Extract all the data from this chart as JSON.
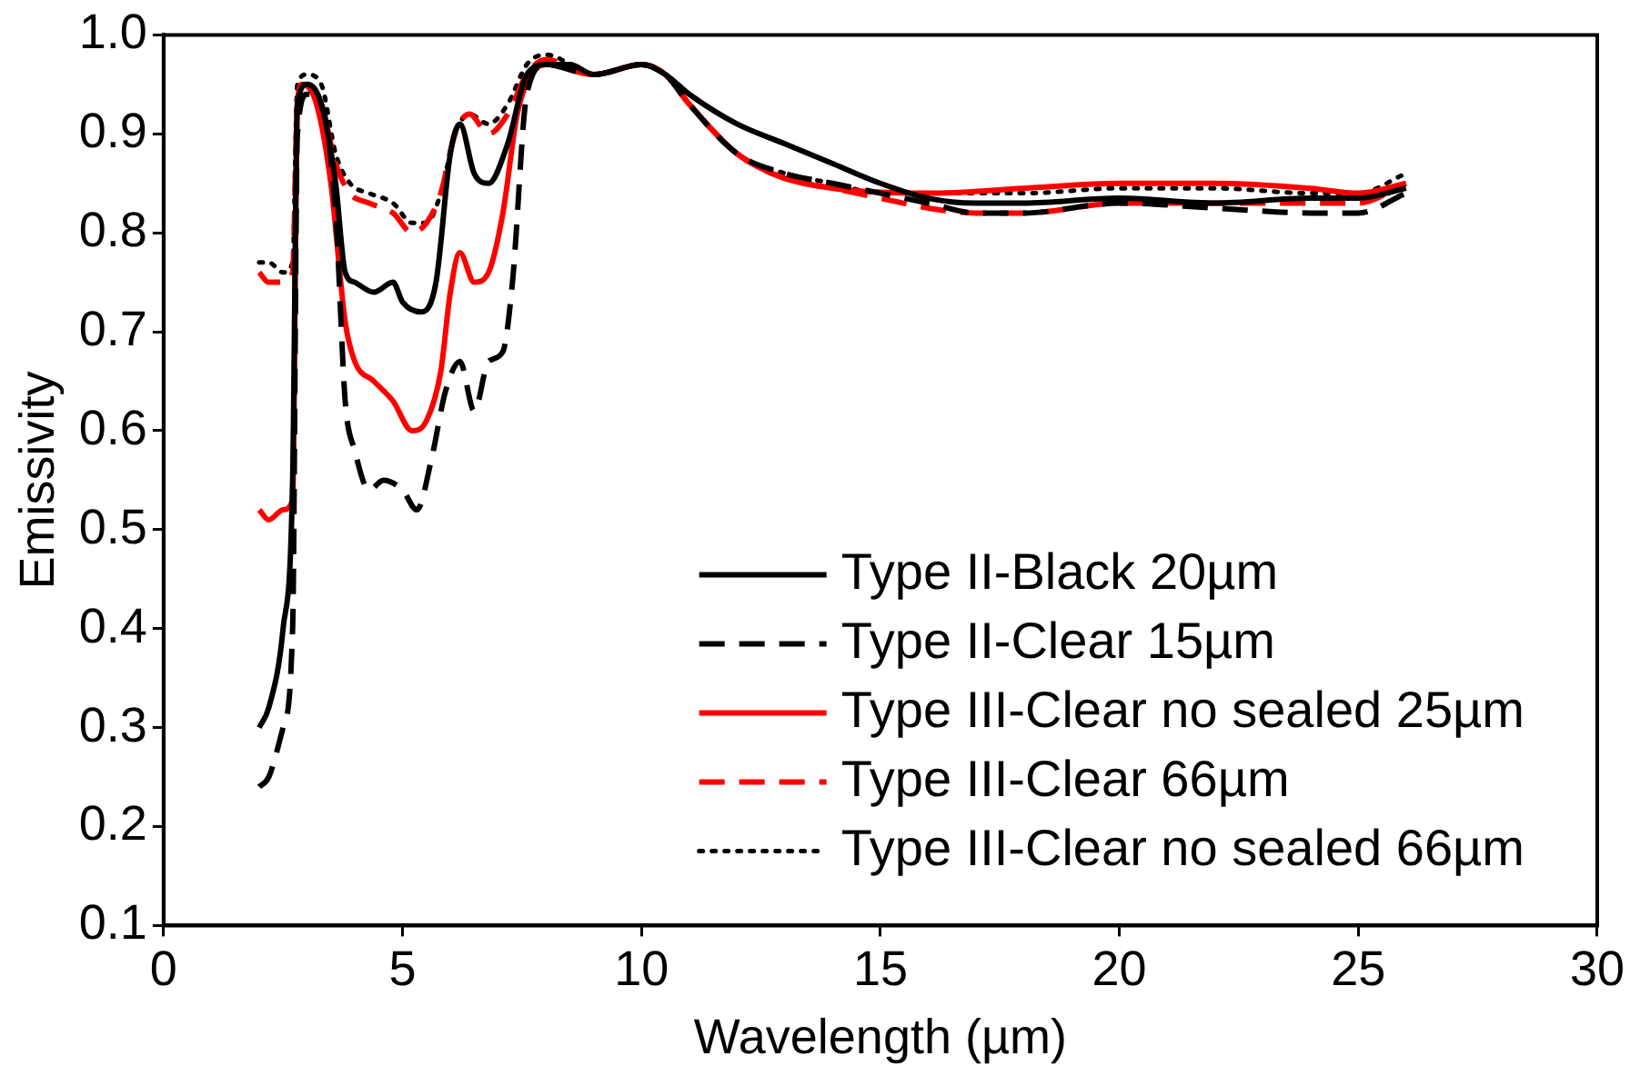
{
  "chart_data": {
    "type": "line",
    "xlabel": "Wavelength (µm)",
    "ylabel": "Emissivity",
    "xlim": [
      0,
      30
    ],
    "xticks": [
      0,
      5,
      10,
      15,
      20,
      25,
      30
    ],
    "ylim": [
      0.1,
      1.0
    ],
    "yticks": [
      {
        "value": 0.1,
        "label": "0.1"
      },
      {
        "value": 0.2,
        "label": "0.2"
      },
      {
        "value": 0.3,
        "label": "0.3"
      },
      {
        "value": 0.4,
        "label": "0.4"
      },
      {
        "value": 0.5,
        "label": "0.5"
      },
      {
        "value": 0.6,
        "label": "0.6"
      },
      {
        "value": 0.7,
        "label": "0.7"
      },
      {
        "value": 0.8,
        "label": "0.8"
      },
      {
        "value": 0.9,
        "label": "0.9"
      },
      {
        "value": 1.0,
        "label": "1.0"
      }
    ],
    "grid": false,
    "legend": "bottom right",
    "marker": "none",
    "series": [
      {
        "name": "Type II-Black 20µm",
        "color": "#000000",
        "line_style": "solid",
        "x": [
          2,
          2.2,
          2.5,
          2.7,
          2.8,
          3.0,
          3.3,
          3.6,
          3.8,
          4.0,
          4.4,
          4.8,
          5.0,
          5.4,
          5.7,
          6.0,
          6.2,
          6.5,
          6.8,
          7.2,
          7.6,
          8,
          8.5,
          9,
          10,
          10.5,
          11,
          12,
          13,
          14,
          15,
          16,
          17,
          18,
          20,
          22,
          24,
          25,
          26
        ],
        "values": [
          0.3,
          0.32,
          0.4,
          0.55,
          0.93,
          0.95,
          0.93,
          0.85,
          0.76,
          0.75,
          0.74,
          0.75,
          0.73,
          0.72,
          0.75,
          0.88,
          0.91,
          0.86,
          0.85,
          0.89,
          0.96,
          0.97,
          0.97,
          0.96,
          0.97,
          0.96,
          0.94,
          0.91,
          0.89,
          0.87,
          0.85,
          0.835,
          0.83,
          0.83,
          0.835,
          0.83,
          0.835,
          0.835,
          0.845
        ]
      },
      {
        "name": "Type II-Clear 15µm",
        "color": "#000000",
        "line_style": "dashed",
        "x": [
          2,
          2.2,
          2.5,
          2.7,
          2.8,
          3.0,
          3.3,
          3.6,
          3.8,
          4.0,
          4.3,
          4.6,
          5.0,
          5.3,
          5.6,
          5.9,
          6.2,
          6.5,
          6.8,
          7.1,
          7.3,
          7.6,
          8,
          9,
          10,
          10.5,
          11,
          12,
          13,
          14,
          15,
          16,
          17,
          18,
          20,
          22,
          24,
          25,
          26
        ],
        "values": [
          0.24,
          0.25,
          0.3,
          0.4,
          0.9,
          0.94,
          0.93,
          0.82,
          0.63,
          0.58,
          0.54,
          0.55,
          0.54,
          0.52,
          0.57,
          0.64,
          0.67,
          0.62,
          0.67,
          0.68,
          0.75,
          0.94,
          0.97,
          0.96,
          0.97,
          0.96,
          0.93,
          0.88,
          0.86,
          0.85,
          0.84,
          0.83,
          0.82,
          0.82,
          0.83,
          0.825,
          0.82,
          0.82,
          0.84
        ]
      },
      {
        "name": "Type III-Clear no sealed 25µm",
        "color": "#ff0000",
        "line_style": "solid",
        "x": [
          2,
          2.2,
          2.5,
          2.7,
          2.8,
          2.9,
          3.2,
          3.5,
          3.8,
          4.0,
          4.4,
          4.8,
          5.2,
          5.5,
          5.8,
          6.0,
          6.2,
          6.5,
          6.8,
          7.1,
          7.4,
          7.7,
          8,
          9,
          10,
          10.5,
          11,
          12,
          13,
          14,
          16,
          18,
          20,
          22,
          24,
          25,
          26
        ],
        "values": [
          0.52,
          0.51,
          0.52,
          0.53,
          0.93,
          0.95,
          0.93,
          0.85,
          0.71,
          0.67,
          0.65,
          0.63,
          0.6,
          0.61,
          0.66,
          0.74,
          0.78,
          0.75,
          0.76,
          0.82,
          0.92,
          0.96,
          0.97,
          0.96,
          0.97,
          0.96,
          0.93,
          0.88,
          0.855,
          0.845,
          0.84,
          0.845,
          0.85,
          0.85,
          0.845,
          0.84,
          0.85
        ]
      },
      {
        "name": "Type III-Clear 66µm",
        "color": "#ff0000",
        "line_style": "dashed",
        "x": [
          2,
          2.2,
          2.5,
          2.7,
          2.8,
          3.0,
          3.3,
          3.6,
          3.9,
          4.3,
          4.8,
          5.2,
          5.5,
          5.8,
          6.1,
          6.4,
          6.8,
          7.2,
          7.6,
          8,
          9,
          10,
          10.5,
          11,
          12,
          13,
          14,
          15,
          16,
          17,
          18,
          20,
          22,
          24,
          25,
          26
        ],
        "values": [
          0.76,
          0.75,
          0.75,
          0.76,
          0.93,
          0.95,
          0.93,
          0.87,
          0.84,
          0.83,
          0.82,
          0.8,
          0.81,
          0.84,
          0.9,
          0.92,
          0.9,
          0.92,
          0.96,
          0.975,
          0.96,
          0.97,
          0.96,
          0.93,
          0.88,
          0.855,
          0.845,
          0.835,
          0.825,
          0.82,
          0.82,
          0.83,
          0.83,
          0.83,
          0.83,
          0.85
        ]
      },
      {
        "name": "Type III-Clear no sealed 66µm",
        "color": "#000000",
        "line_style": "dotted",
        "x": [
          2,
          2.2,
          2.5,
          2.7,
          2.8,
          3.0,
          3.3,
          3.6,
          3.9,
          4.3,
          4.8,
          5.2,
          5.5,
          5.8,
          6.1,
          6.4,
          6.8,
          7.2,
          7.6,
          8,
          9,
          10,
          10.5,
          11,
          12,
          13,
          14,
          15,
          16,
          18,
          20,
          22,
          24,
          25,
          26
        ],
        "values": [
          0.77,
          0.77,
          0.76,
          0.77,
          0.95,
          0.96,
          0.95,
          0.88,
          0.85,
          0.84,
          0.83,
          0.81,
          0.81,
          0.84,
          0.9,
          0.92,
          0.91,
          0.93,
          0.97,
          0.98,
          0.96,
          0.97,
          0.96,
          0.93,
          0.88,
          0.86,
          0.85,
          0.84,
          0.84,
          0.84,
          0.845,
          0.845,
          0.84,
          0.84,
          0.86
        ]
      }
    ]
  }
}
